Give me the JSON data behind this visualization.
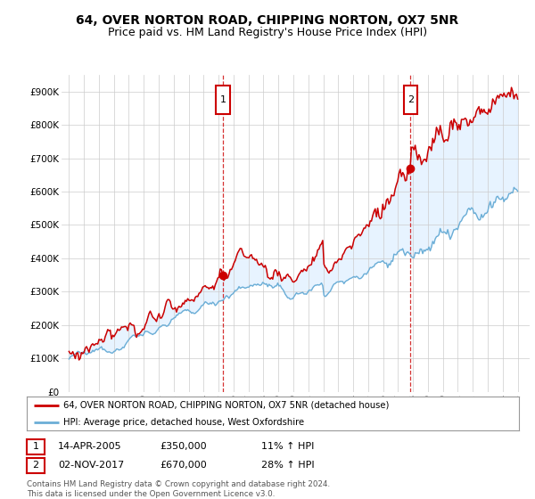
{
  "title": "64, OVER NORTON ROAD, CHIPPING NORTON, OX7 5NR",
  "subtitle": "Price paid vs. HM Land Registry's House Price Index (HPI)",
  "ylim": [
    0,
    950000
  ],
  "yticks": [
    0,
    100000,
    200000,
    300000,
    400000,
    500000,
    600000,
    700000,
    800000,
    900000
  ],
  "ytick_labels": [
    "£0",
    "£100K",
    "£200K",
    "£300K",
    "£400K",
    "£500K",
    "£600K",
    "£700K",
    "£800K",
    "£900K"
  ],
  "background_color": "#ffffff",
  "plot_bg_color": "#ffffff",
  "grid_color": "#cccccc",
  "hpi_color": "#6baed6",
  "hpi_fill_color": "#ddeeff",
  "price_color": "#cc0000",
  "sale1_year": 2005.29,
  "sale1_price": 350000,
  "sale1_label": "1",
  "sale1_date": "14-APR-2005",
  "sale1_pct": "11%",
  "sale2_year": 2017.84,
  "sale2_price": 670000,
  "sale2_label": "2",
  "sale2_date": "02-NOV-2017",
  "sale2_pct": "28%",
  "legend_line1": "64, OVER NORTON ROAD, CHIPPING NORTON, OX7 5NR (detached house)",
  "legend_line2": "HPI: Average price, detached house, West Oxfordshire",
  "footnote": "Contains HM Land Registry data © Crown copyright and database right 2024.\nThis data is licensed under the Open Government Licence v3.0.",
  "title_fontsize": 10,
  "subtitle_fontsize": 9
}
